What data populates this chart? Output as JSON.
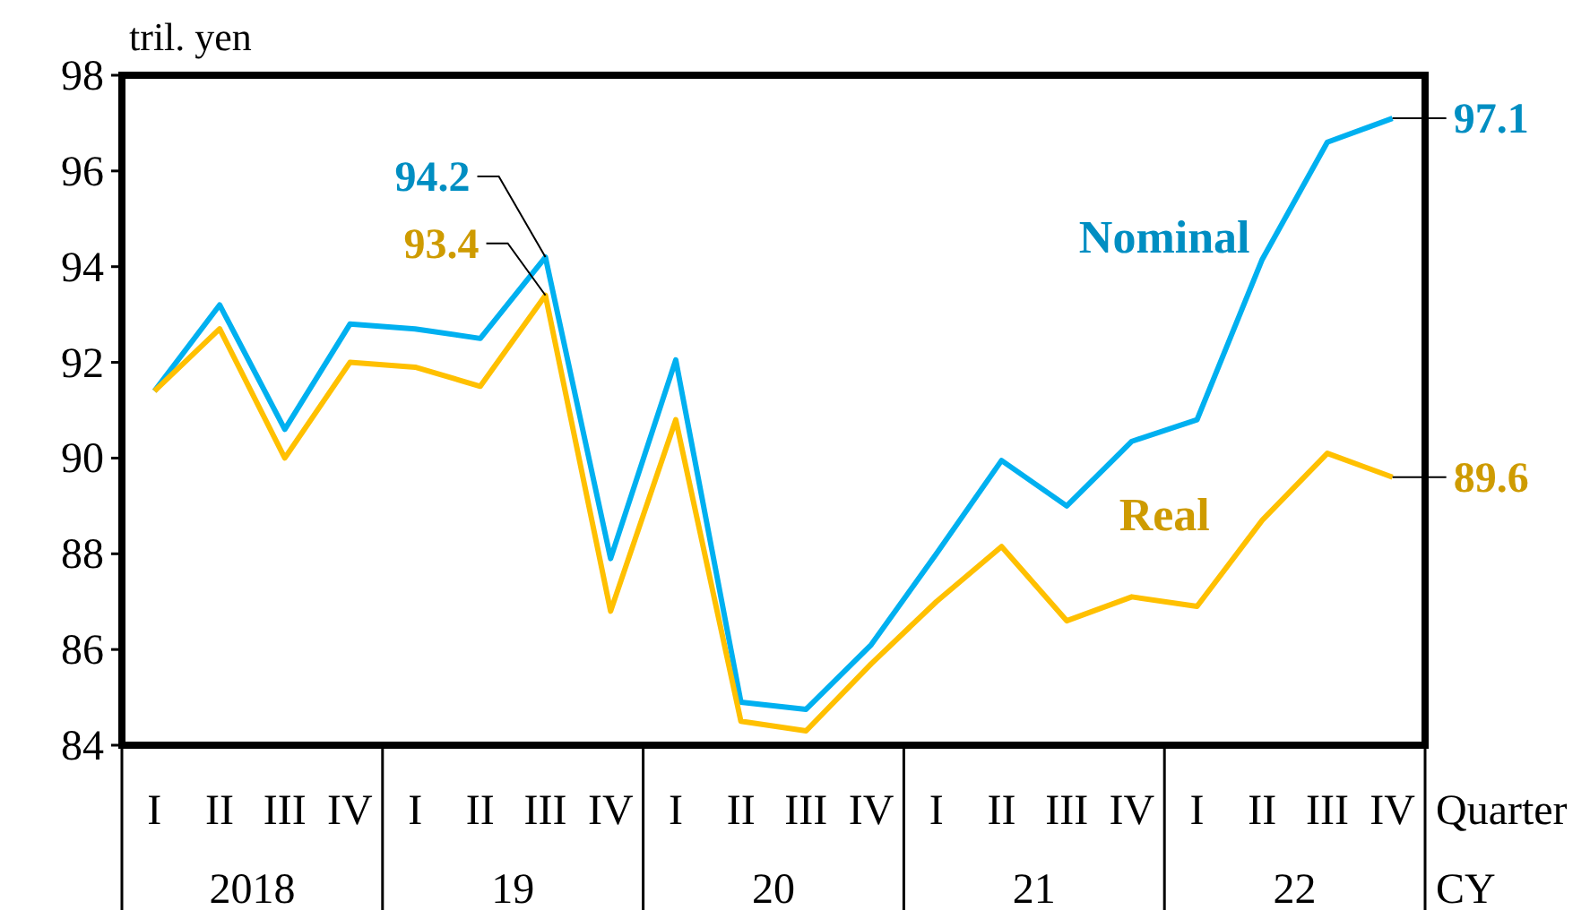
{
  "chart_data": {
    "type": "line",
    "ylabel": "tril. yen",
    "xlabel": "Quarter",
    "categories": [
      "I",
      "II",
      "III",
      "IV",
      "I",
      "II",
      "III",
      "IV",
      "I",
      "II",
      "III",
      "IV",
      "I",
      "II",
      "III",
      "IV",
      "I",
      "II",
      "III",
      "IV"
    ],
    "annotations": [
      "2018",
      "19",
      "20",
      "21",
      "22",
      "CY"
    ],
    "ylim": [
      84,
      98
    ],
    "yticks": [
      84,
      86,
      88,
      90,
      92,
      94,
      96,
      98
    ],
    "grid": false,
    "marker": "none",
    "line_style": "solid",
    "series": [
      {
        "name": "Nominal",
        "color": "#00b0f0",
        "values": [
          91.4,
          93.2,
          90.6,
          92.8,
          92.7,
          92.5,
          94.2,
          87.9,
          92.05,
          84.9,
          84.75,
          86.1,
          88.0,
          89.95,
          89.0,
          90.35,
          90.8,
          94.15,
          96.6,
          97.1
        ],
        "value_labels": [
          null,
          null,
          null,
          null,
          null,
          null,
          "94.2",
          null,
          null,
          null,
          null,
          null,
          null,
          null,
          null,
          null,
          null,
          null,
          null,
          "97.1"
        ]
      },
      {
        "name": "Real",
        "color": "#ffc000",
        "values": [
          91.4,
          92.7,
          90.0,
          92.0,
          91.9,
          91.5,
          93.4,
          86.8,
          90.8,
          84.5,
          84.3,
          85.7,
          87.0,
          88.15,
          86.6,
          87.1,
          86.9,
          88.7,
          90.1,
          89.6
        ],
        "value_labels": [
          null,
          null,
          null,
          null,
          null,
          null,
          "93.4",
          null,
          null,
          null,
          null,
          null,
          null,
          null,
          null,
          null,
          null,
          null,
          null,
          "89.6"
        ]
      }
    ]
  }
}
